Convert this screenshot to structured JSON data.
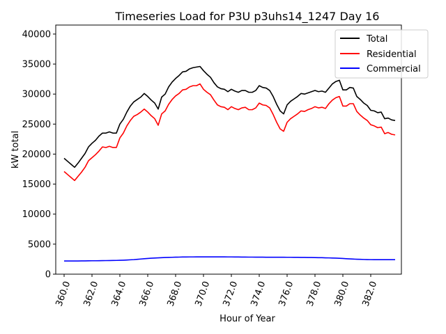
{
  "chart_data": {
    "type": "line",
    "title": "Timeseries Load for P3U p3uhs14_1247  Day 16",
    "xlabel": "Hour of Year",
    "ylabel": "kW total",
    "xlim": [
      359.4,
      384.2
    ],
    "ylim": [
      0,
      41500
    ],
    "xticks": [
      360,
      362,
      364,
      366,
      368,
      370,
      372,
      374,
      376,
      378,
      380,
      382
    ],
    "xtick_labels": [
      "360.0",
      "362.0",
      "364.0",
      "366.0",
      "368.0",
      "370.0",
      "372.0",
      "374.0",
      "376.0",
      "378.0",
      "380.0",
      "382.0"
    ],
    "yticks": [
      0,
      5000,
      10000,
      15000,
      20000,
      25000,
      30000,
      35000,
      40000
    ],
    "ytick_labels": [
      "0",
      "5000",
      "10000",
      "15000",
      "20000",
      "25000",
      "30000",
      "35000",
      "40000"
    ],
    "legend_position": "top-right",
    "x_start": 360,
    "x_step": 0.25,
    "series": [
      {
        "name": "Total",
        "color": "#000000",
        "values": [
          19300,
          18800,
          18300,
          17800,
          18500,
          19300,
          20100,
          21200,
          21800,
          22300,
          23000,
          23500,
          23500,
          23700,
          23500,
          23500,
          25000,
          25800,
          27000,
          28000,
          28700,
          29100,
          29500,
          30100,
          29600,
          29000,
          28500,
          27500,
          29500,
          30000,
          31200,
          32000,
          32600,
          33100,
          33700,
          33800,
          34200,
          34400,
          34500,
          34600,
          33900,
          33300,
          32800,
          31900,
          31200,
          30900,
          30800,
          30400,
          30800,
          30500,
          30300,
          30600,
          30600,
          30300,
          30300,
          30600,
          31400,
          31100,
          31000,
          30600,
          29600,
          28300,
          27200,
          26700,
          28200,
          28800,
          29200,
          29600,
          30100,
          30000,
          30200,
          30400,
          30600,
          30400,
          30500,
          30300,
          31000,
          31700,
          32100,
          32300,
          30700,
          30700,
          31100,
          31000,
          29600,
          29100,
          28500,
          28100,
          27300,
          27200,
          26900,
          27000,
          25900,
          26000,
          25700,
          25600
        ]
      },
      {
        "name": "Residential",
        "color": "#ff0000",
        "values": [
          17100,
          16600,
          16100,
          15600,
          16300,
          17000,
          17800,
          18900,
          19400,
          19900,
          20500,
          21200,
          21100,
          21300,
          21100,
          21100,
          22700,
          23500,
          24700,
          25600,
          26300,
          26600,
          27000,
          27500,
          27000,
          26400,
          25900,
          24800,
          26700,
          27200,
          28300,
          29100,
          29700,
          30100,
          30700,
          30800,
          31200,
          31400,
          31400,
          31700,
          30800,
          30300,
          29900,
          29000,
          28200,
          27900,
          27800,
          27400,
          27900,
          27600,
          27400,
          27700,
          27800,
          27400,
          27400,
          27700,
          28500,
          28200,
          28100,
          27700,
          26600,
          25300,
          24200,
          23800,
          25300,
          25900,
          26300,
          26700,
          27200,
          27100,
          27400,
          27600,
          27900,
          27700,
          27800,
          27600,
          28400,
          29000,
          29400,
          29600,
          28000,
          28000,
          28400,
          28400,
          27100,
          26500,
          26000,
          25600,
          24900,
          24700,
          24400,
          24500,
          23400,
          23600,
          23300,
          23200
        ]
      },
      {
        "name": "Commercial",
        "color": "#0000ff",
        "values": [
          2200,
          2200,
          2200,
          2200,
          2200,
          2210,
          2210,
          2220,
          2230,
          2230,
          2240,
          2250,
          2260,
          2270,
          2280,
          2290,
          2310,
          2330,
          2360,
          2390,
          2420,
          2470,
          2520,
          2570,
          2620,
          2660,
          2690,
          2720,
          2750,
          2770,
          2790,
          2810,
          2830,
          2840,
          2860,
          2860,
          2870,
          2870,
          2880,
          2880,
          2880,
          2880,
          2880,
          2880,
          2880,
          2880,
          2880,
          2870,
          2870,
          2860,
          2860,
          2850,
          2850,
          2840,
          2840,
          2830,
          2830,
          2830,
          2820,
          2820,
          2820,
          2820,
          2820,
          2820,
          2810,
          2810,
          2800,
          2800,
          2790,
          2790,
          2780,
          2770,
          2760,
          2750,
          2740,
          2720,
          2710,
          2690,
          2670,
          2640,
          2610,
          2570,
          2540,
          2510,
          2490,
          2470,
          2450,
          2430,
          2420,
          2410,
          2410,
          2410,
          2410,
          2410,
          2410,
          2410
        ]
      }
    ]
  }
}
